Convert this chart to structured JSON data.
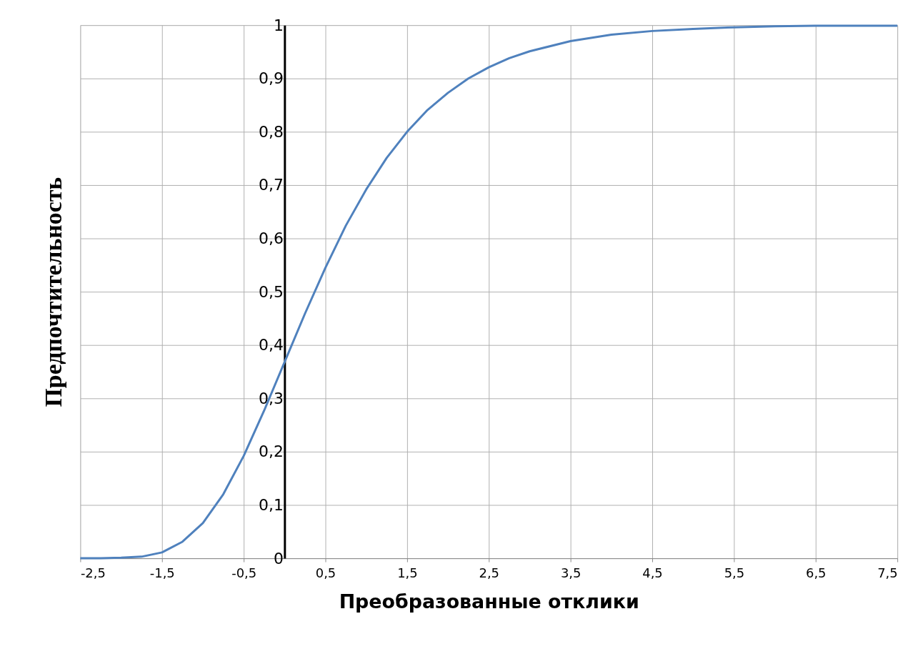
{
  "chart_data": {
    "type": "line",
    "xlabel": "Преобразованные отклики",
    "ylabel": "Предпочтительность",
    "x": [
      -2.5,
      -2.25,
      -2.0,
      -1.75,
      -1.5,
      -1.25,
      -1.0,
      -0.75,
      -0.5,
      -0.25,
      0,
      0.25,
      0.5,
      0.75,
      1.0,
      1.25,
      1.5,
      1.75,
      2.0,
      2.25,
      2.5,
      2.75,
      3.0,
      3.5,
      4.0,
      4.5,
      5.0,
      5.5,
      6.0,
      6.5,
      7.0,
      7.5
    ],
    "series": [
      {
        "color": "#4f81bd",
        "values": [
          0.0,
          0.0,
          0.001,
          0.003,
          0.011,
          0.031,
          0.066,
          0.12,
          0.192,
          0.277,
          0.368,
          0.459,
          0.545,
          0.624,
          0.692,
          0.751,
          0.8,
          0.841,
          0.873,
          0.9,
          0.921,
          0.938,
          0.951,
          0.97,
          0.982,
          0.989,
          0.993,
          0.996,
          0.998,
          0.999,
          0.999,
          0.999
        ]
      }
    ],
    "xlim": [
      -2.5,
      7.5
    ],
    "ylim": [
      0,
      1
    ],
    "xticks": [
      {
        "value": -2.5,
        "label": "-2,5"
      },
      {
        "value": -1.5,
        "label": "-1,5"
      },
      {
        "value": -0.5,
        "label": "-0,5"
      },
      {
        "value": 0.5,
        "label": "0,5"
      },
      {
        "value": 1.5,
        "label": "1,5"
      },
      {
        "value": 2.5,
        "label": "2,5"
      },
      {
        "value": 3.5,
        "label": "3,5"
      },
      {
        "value": 4.5,
        "label": "4,5"
      },
      {
        "value": 5.5,
        "label": "5,5"
      },
      {
        "value": 6.5,
        "label": "6,5"
      },
      {
        "value": 7.5,
        "label": "7,5"
      }
    ],
    "yticks": [
      0,
      {
        "value": 0.1,
        "label": "0,1"
      },
      {
        "value": 0.2,
        "label": "0,2"
      },
      {
        "value": 0.3,
        "label": "0,3"
      },
      {
        "value": 0.4,
        "label": "0,4"
      },
      {
        "value": 0.5,
        "label": "0,5"
      },
      {
        "value": 0.6,
        "label": "0,6"
      },
      {
        "value": 0.7,
        "label": "0,7"
      },
      {
        "value": 0.8,
        "label": "0,8"
      },
      {
        "value": 0.9,
        "label": "0,9"
      },
      1
    ],
    "grid": true,
    "marker": "none",
    "line_style": "solid"
  }
}
